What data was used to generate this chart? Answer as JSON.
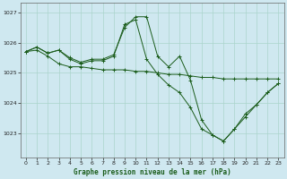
{
  "title": "Graphe pression niveau de la mer (hPa)",
  "background_color": "#cfe8f0",
  "grid_color": "#aad4cc",
  "line_color": "#1a5c1a",
  "xlim": [
    -0.5,
    23.5
  ],
  "ylim": [
    1022.2,
    1027.3
  ],
  "yticks": [
    1023,
    1024,
    1025,
    1026,
    1027
  ],
  "xticks": [
    0,
    1,
    2,
    3,
    4,
    5,
    6,
    7,
    8,
    9,
    10,
    11,
    12,
    13,
    14,
    15,
    16,
    17,
    18,
    19,
    20,
    21,
    22,
    23
  ],
  "series1": [
    [
      0,
      1025.7
    ],
    [
      1,
      1025.85
    ],
    [
      2,
      1025.65
    ],
    [
      3,
      1025.75
    ],
    [
      4,
      1025.5
    ],
    [
      5,
      1025.35
    ],
    [
      6,
      1025.45
    ],
    [
      7,
      1025.45
    ],
    [
      8,
      1025.6
    ],
    [
      9,
      1026.5
    ],
    [
      10,
      1026.85
    ],
    [
      11,
      1026.85
    ],
    [
      12,
      1025.55
    ],
    [
      13,
      1025.2
    ],
    [
      14,
      1025.55
    ],
    [
      15,
      1024.75
    ],
    [
      16,
      1023.45
    ],
    [
      17,
      1022.95
    ],
    [
      18,
      1022.75
    ],
    [
      19,
      1023.15
    ],
    [
      20,
      1023.65
    ],
    [
      21,
      1023.95
    ],
    [
      22,
      1024.35
    ],
    [
      23,
      1024.65
    ]
  ],
  "series2": [
    [
      0,
      1025.7
    ],
    [
      1,
      1025.85
    ],
    [
      2,
      1025.65
    ],
    [
      3,
      1025.75
    ],
    [
      4,
      1025.45
    ],
    [
      5,
      1025.3
    ],
    [
      6,
      1025.4
    ],
    [
      7,
      1025.4
    ],
    [
      8,
      1025.55
    ],
    [
      9,
      1026.6
    ],
    [
      10,
      1026.75
    ],
    [
      11,
      1025.45
    ],
    [
      12,
      1024.95
    ],
    [
      13,
      1024.6
    ],
    [
      14,
      1024.35
    ],
    [
      15,
      1023.85
    ],
    [
      16,
      1023.15
    ],
    [
      17,
      1022.95
    ],
    [
      18,
      1022.75
    ],
    [
      19,
      1023.15
    ],
    [
      20,
      1023.55
    ],
    [
      21,
      1023.95
    ],
    [
      22,
      1024.35
    ],
    [
      23,
      1024.65
    ]
  ],
  "series3": [
    [
      0,
      1025.7
    ],
    [
      1,
      1025.75
    ],
    [
      2,
      1025.55
    ],
    [
      3,
      1025.3
    ],
    [
      4,
      1025.2
    ],
    [
      5,
      1025.2
    ],
    [
      6,
      1025.15
    ],
    [
      7,
      1025.1
    ],
    [
      8,
      1025.1
    ],
    [
      9,
      1025.1
    ],
    [
      10,
      1025.05
    ],
    [
      11,
      1025.05
    ],
    [
      12,
      1025.0
    ],
    [
      13,
      1024.95
    ],
    [
      14,
      1024.95
    ],
    [
      15,
      1024.9
    ],
    [
      16,
      1024.85
    ],
    [
      17,
      1024.85
    ],
    [
      18,
      1024.8
    ],
    [
      19,
      1024.8
    ],
    [
      20,
      1024.8
    ],
    [
      21,
      1024.8
    ],
    [
      22,
      1024.8
    ],
    [
      23,
      1024.8
    ]
  ]
}
